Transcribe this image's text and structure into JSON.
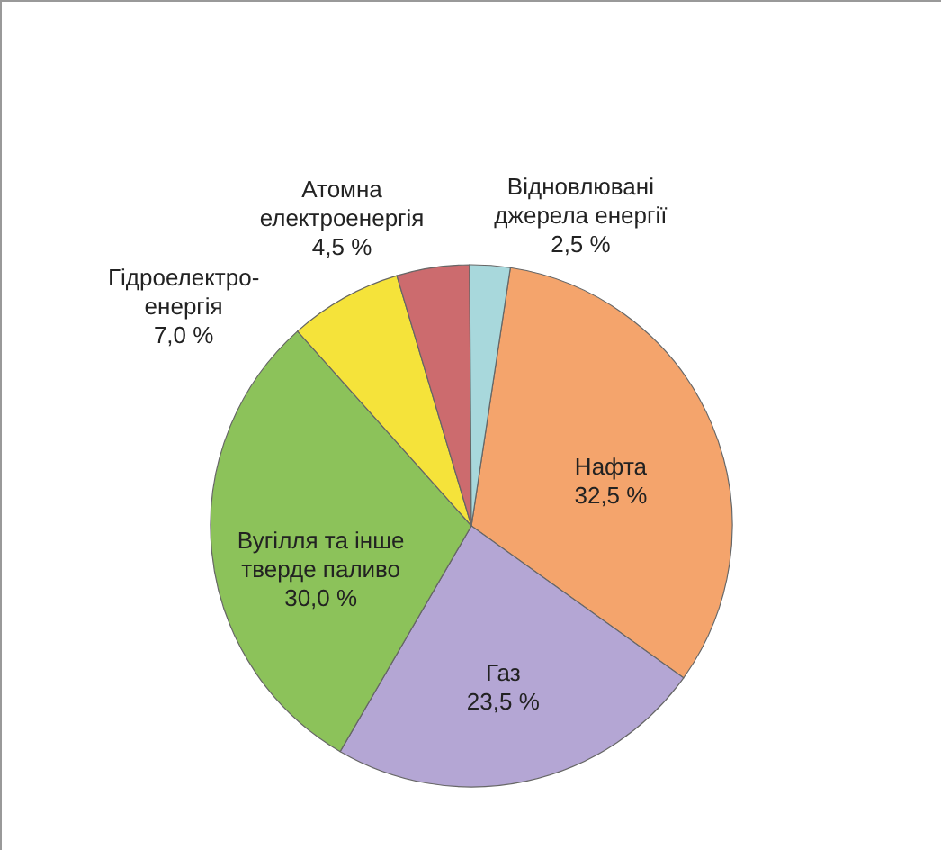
{
  "chart_data": {
    "type": "pie",
    "categories": [
      "Нафта",
      "Газ",
      "Вугілля та інше\nтверде паливо",
      "Гідроелектро-\nенергія",
      "Атомна\nелектроенергія",
      "Відновлювані\nджерела енергії"
    ],
    "values": [
      32.5,
      23.5,
      30.0,
      7.0,
      4.5,
      2.5
    ],
    "value_labels": [
      "32,5 %",
      "23,5 %",
      "30,0 %",
      "7,0 %",
      "4,5 %",
      "2,5 %"
    ],
    "colors": [
      "#f4a46c",
      "#b4a6d4",
      "#8cc25a",
      "#f5e33a",
      "#cc6b6e",
      "#a8d8dc"
    ]
  }
}
